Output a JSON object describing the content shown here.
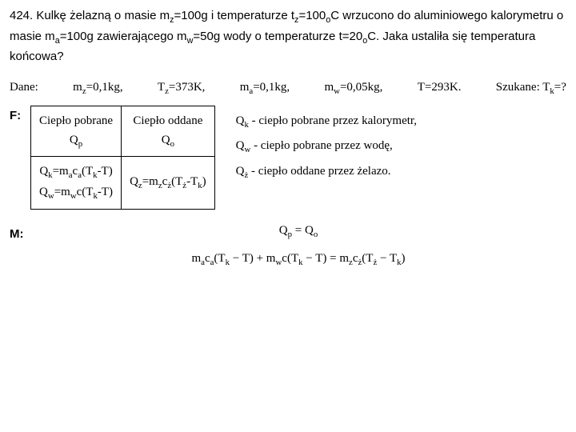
{
  "problem": {
    "num": "424.",
    "text": "Kulkę żelazną o masie m<sub>z</sub>=100g i temperaturze t<sub>z</sub>=100<sub>o</sub>C wrzucono do aluminiowego kalorymetru o masie m<sub>a</sub>=100g zawierającego m<sub>w</sub>=50g wody o temperaturze t=20<sub>o</sub>C. Jaka ustaliła się temperatura końcowa?"
  },
  "dane": {
    "label": "Dane:",
    "items": [
      "m<sub>z</sub>=0,1kg,",
      "T<sub>z</sub>=373K,",
      "m<sub>a</sub>=0,1kg,",
      "m<sub>w</sub>=0,05kg,",
      "T=293K."
    ],
    "szukane": "Szukane: T<sub>k</sub>=?"
  },
  "F": {
    "label": "F:",
    "table": {
      "head": [
        "Ciepło pobrane<br>Q<sub>p</sub>",
        "Ciepło oddane<br>Q<sub>o</sub>"
      ],
      "row2": [
        "Q<sub>k</sub>=m<sub>a</sub>c<sub>a</sub>(T<sub>k</sub>-T)<br>Q<sub>w</sub>=m<sub>w</sub>c(T<sub>k</sub>-T)",
        "Q<sub>z</sub>=m<sub>z</sub>c<sub>ż</sub>(T<sub>ż</sub>-T<sub>k</sub>)"
      ]
    },
    "legend": [
      "Q<sub>k</sub> - ciepło pobrane przez kalorymetr,",
      "Q<sub>w</sub> - ciepło pobrane przez wodę,",
      "Q<sub>ż</sub> - ciepło oddane przez żelazo."
    ]
  },
  "M": {
    "label": "M:",
    "eq1": "Q<sub>p</sub> = Q<sub>o</sub>",
    "eq2": "m<sub>a</sub>c<sub>a</sub>(T<sub>k</sub> − T) + m<sub>w</sub>c(T<sub>k</sub> − T)  =  m<sub>z</sub>c<sub>ż</sub>(T<sub>ż</sub> − T<sub>k</sub>)"
  }
}
